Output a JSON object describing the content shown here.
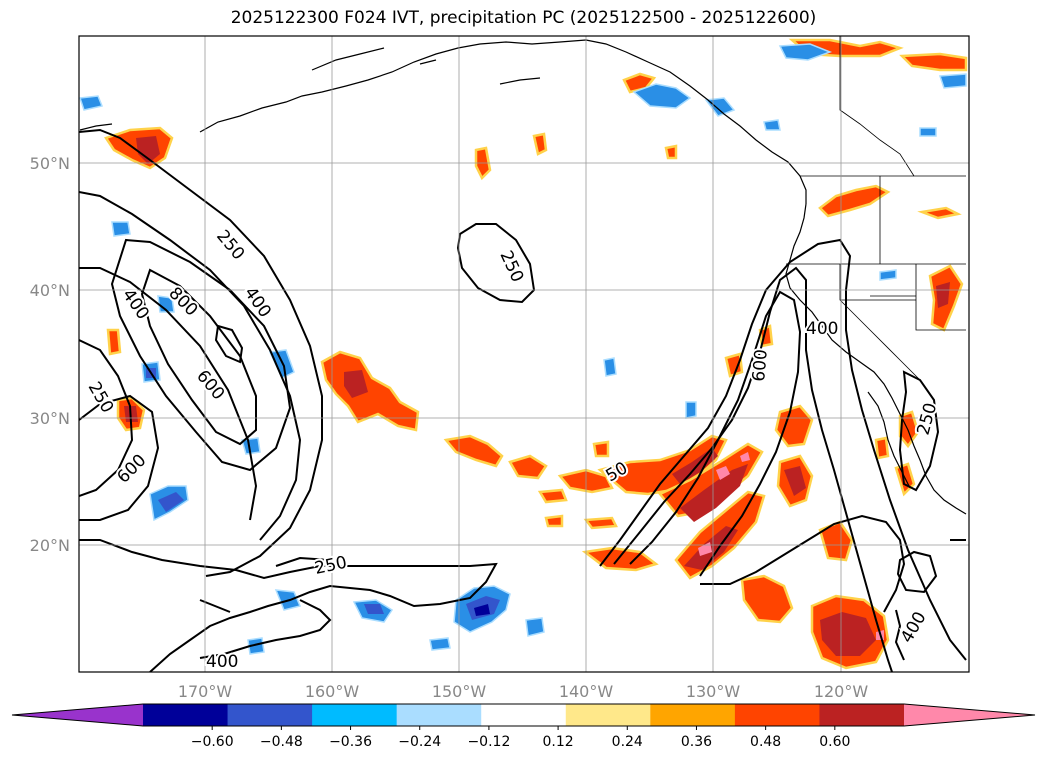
{
  "title": "2025122300 F024 IVT, precipitation PC (2025122500 - 2025122600)",
  "latitude_labels": [
    "50°N",
    "40°N",
    "30°N",
    "20°N"
  ],
  "longitude_labels": [
    "170°W",
    "160°W",
    "150°W",
    "140°W",
    "130°W",
    "120°W"
  ],
  "ivt_contour_labels": [
    "250",
    "400",
    "800",
    "400",
    "600",
    "250",
    "600",
    "250",
    "250",
    "50",
    "600",
    "400",
    "250",
    "400",
    "400"
  ],
  "colorbar": {
    "tick_labels": [
      "−0.60",
      "−0.48",
      "−0.36",
      "−0.24",
      "−0.12",
      "0.12",
      "0.24",
      "0.36",
      "0.48",
      "0.60"
    ],
    "colors": [
      "#9933cc",
      "#000099",
      "#3355cc",
      "#00bbff",
      "#aaddff",
      "#ffffff",
      "#ffe88a",
      "#ffa500",
      "#ff4400",
      "#bb2222",
      "#ff88aa"
    ]
  },
  "colors": {
    "negative_blue": "#2a8fe6",
    "positive_orange": "#ff4400",
    "positive_dark": "#bb2222",
    "positive_pink": "#ff88aa",
    "yellow_edge": "#ffd24a",
    "contour": "#000000",
    "grid": "#999999"
  }
}
